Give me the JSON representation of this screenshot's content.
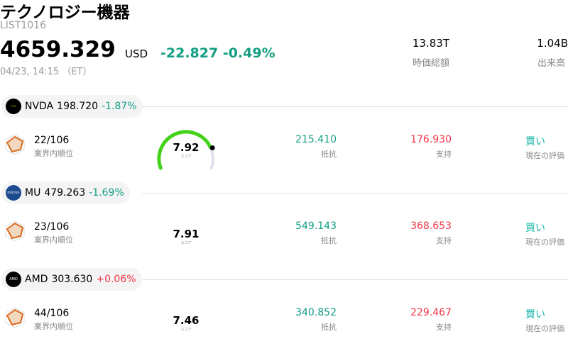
{
  "header": {
    "title": "テクノロジー機器",
    "list_id": "LIST1016",
    "price": "4659.329",
    "currency": "USD",
    "change": "-22.827",
    "change_pct": "-0.49%",
    "timestamp": "04/23, 14:15 （ET）",
    "market_cap": "13.83T",
    "market_cap_label": "時価総額",
    "volume": "1.04B",
    "volume_label": "出来高"
  },
  "colors": {
    "up": "#f23645",
    "down": "#139e82",
    "gauge": "#44d31a"
  },
  "labels": {
    "rank": "業界内順位",
    "score": "スコア",
    "resistance": "抵抗",
    "support": "支持",
    "rating": "現在の評価"
  },
  "stocks": [
    {
      "ticker": "NVDA",
      "price": "198.720",
      "change": "-1.87%",
      "dir": "down",
      "rank": "22/106",
      "score": "7.92",
      "score_value": 7.92,
      "resistance": "215.410",
      "support": "176.930",
      "rating": "買い"
    },
    {
      "ticker": "MU",
      "price": "479.263",
      "change": "-1.69%",
      "dir": "down",
      "rank": "23/106",
      "score": "7.91",
      "score_value": 7.91,
      "resistance": "549.143",
      "support": "368.653",
      "rating": "買い"
    },
    {
      "ticker": "AMD",
      "price": "303.630",
      "change": "+0.06%",
      "dir": "up",
      "rank": "44/106",
      "score": "7.46",
      "score_value": 7.46,
      "resistance": "340.852",
      "support": "229.467",
      "rating": "買い"
    }
  ]
}
